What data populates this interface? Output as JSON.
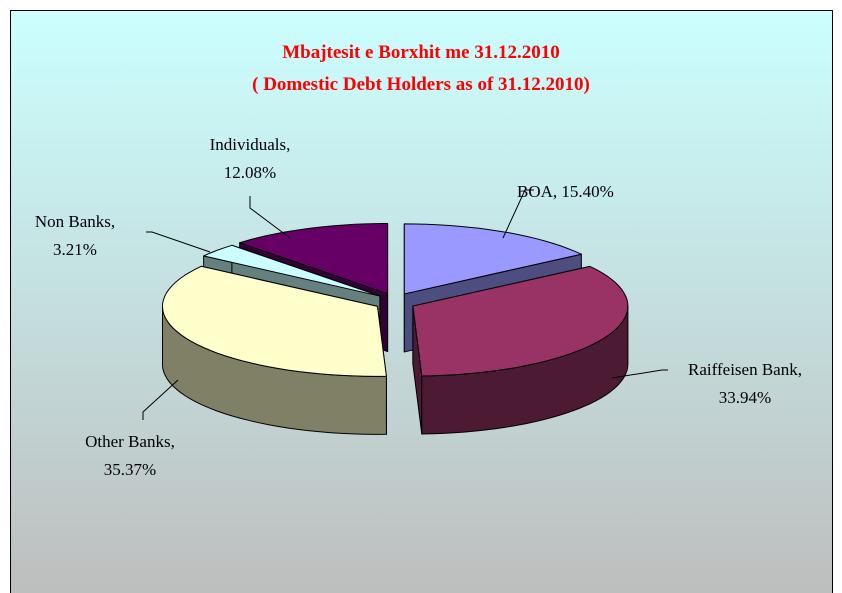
{
  "chart_data": {
    "type": "pie3d",
    "title": "Mbajtesit e Borxhit me 31.12.2010",
    "subtitle": "( Domestic Debt Holders as of 31.12.2010)",
    "categories": [
      "BOA",
      "Raiffeisen Bank",
      "Other Banks",
      "Non Banks",
      "Individuals"
    ],
    "values": [
      15.4,
      33.94,
      35.37,
      3.21,
      12.08
    ],
    "value_labels": [
      "BOA, 15.40%",
      "Raiffeisen Bank,\n33.94%",
      "Other Banks,\n35.37%",
      "Non Banks,\n3.21%",
      "Individuals,\n12.08%"
    ],
    "colors": [
      "#9999ff",
      "#993366",
      "#ffffcc",
      "#ccffff",
      "#660066"
    ],
    "side_colors": [
      "#4d4d80",
      "#4d1a33",
      "#808066",
      "#668080",
      "#330033"
    ]
  }
}
